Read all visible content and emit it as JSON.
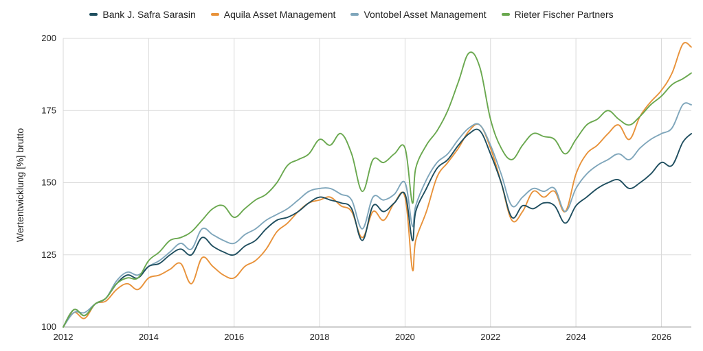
{
  "chart_data": {
    "type": "line",
    "title": "",
    "xlabel": "",
    "ylabel": "Wertentwicklung [%] brutto",
    "xlim": [
      2012,
      2026.7
    ],
    "ylim": [
      100,
      200
    ],
    "x_ticks": [
      2012,
      2014,
      2016,
      2018,
      2020,
      2022,
      2024,
      2026
    ],
    "y_ticks": [
      100,
      125,
      150,
      175,
      200
    ],
    "grid": true,
    "legend_position": "top-center",
    "series": [
      {
        "name": "Bank J. Safra Sarasin",
        "color": "#1f4e5f",
        "x": [
          2012,
          2012.25,
          2012.5,
          2012.75,
          2013,
          2013.25,
          2013.5,
          2013.75,
          2014,
          2014.25,
          2014.5,
          2014.75,
          2015,
          2015.25,
          2015.5,
          2015.75,
          2016,
          2016.25,
          2016.5,
          2016.75,
          2017,
          2017.25,
          2017.5,
          2017.75,
          2018,
          2018.25,
          2018.5,
          2018.75,
          2019,
          2019.25,
          2019.5,
          2019.75,
          2020,
          2020.17,
          2020.25,
          2020.5,
          2020.75,
          2021,
          2021.25,
          2021.5,
          2021.75,
          2022,
          2022.25,
          2022.5,
          2022.75,
          2023,
          2023.25,
          2023.5,
          2023.75,
          2024,
          2024.25,
          2024.5,
          2024.75,
          2025,
          2025.25,
          2025.5,
          2025.75,
          2026,
          2026.25,
          2026.5,
          2026.7
        ],
        "values": [
          100,
          106,
          104,
          108,
          110,
          115,
          118,
          117,
          121,
          122,
          125,
          127,
          125,
          131,
          128,
          126,
          125,
          128,
          130,
          134,
          137,
          138,
          140,
          143,
          145,
          144,
          143,
          141,
          130,
          142,
          140,
          143,
          146,
          130,
          140,
          148,
          155,
          158,
          163,
          167,
          168,
          160,
          150,
          138,
          142,
          141,
          143,
          142,
          136,
          142,
          145,
          148,
          150,
          151,
          148,
          150,
          153,
          157,
          156,
          164,
          167
        ]
      },
      {
        "name": "Aquila Asset Management",
        "color": "#e8923a",
        "x": [
          2012,
          2012.25,
          2012.5,
          2012.75,
          2013,
          2013.25,
          2013.5,
          2013.75,
          2014,
          2014.25,
          2014.5,
          2014.75,
          2015,
          2015.25,
          2015.5,
          2015.75,
          2016,
          2016.25,
          2016.5,
          2016.75,
          2017,
          2017.25,
          2017.5,
          2017.75,
          2018,
          2018.25,
          2018.5,
          2018.75,
          2019,
          2019.25,
          2019.5,
          2019.75,
          2020,
          2020.17,
          2020.25,
          2020.5,
          2020.75,
          2021,
          2021.25,
          2021.5,
          2021.75,
          2022,
          2022.25,
          2022.5,
          2022.75,
          2023,
          2023.25,
          2023.5,
          2023.75,
          2024,
          2024.25,
          2024.5,
          2024.75,
          2025,
          2025.25,
          2025.5,
          2025.75,
          2026,
          2026.25,
          2026.5,
          2026.7
        ],
        "values": [
          100,
          105,
          103,
          108,
          109,
          113,
          115,
          113,
          117,
          118,
          120,
          122,
          115,
          124,
          121,
          118,
          117,
          121,
          123,
          127,
          133,
          136,
          140,
          143,
          144,
          145,
          142,
          140,
          131,
          140,
          137,
          143,
          145,
          120,
          130,
          140,
          152,
          157,
          162,
          168,
          170,
          162,
          150,
          137,
          140,
          147,
          145,
          147,
          140,
          153,
          160,
          163,
          167,
          170,
          165,
          173,
          178,
          182,
          188,
          198,
          197
        ]
      },
      {
        "name": "Vontobel Asset Management",
        "color": "#7fa6bb",
        "x": [
          2012,
          2012.25,
          2012.5,
          2012.75,
          2013,
          2013.25,
          2013.5,
          2013.75,
          2014,
          2014.25,
          2014.5,
          2014.75,
          2015,
          2015.25,
          2015.5,
          2015.75,
          2016,
          2016.25,
          2016.5,
          2016.75,
          2017,
          2017.25,
          2017.5,
          2017.75,
          2018,
          2018.25,
          2018.5,
          2018.75,
          2019,
          2019.25,
          2019.5,
          2019.75,
          2020,
          2020.17,
          2020.25,
          2020.5,
          2020.75,
          2021,
          2021.25,
          2021.5,
          2021.75,
          2022,
          2022.25,
          2022.5,
          2022.75,
          2023,
          2023.25,
          2023.5,
          2023.75,
          2024,
          2024.25,
          2024.5,
          2024.75,
          2025,
          2025.25,
          2025.5,
          2025.75,
          2026,
          2026.25,
          2026.5,
          2026.7
        ],
        "values": [
          100,
          105,
          105,
          108,
          110,
          116,
          119,
          118,
          121,
          123,
          126,
          129,
          127,
          134,
          132,
          130,
          129,
          132,
          134,
          137,
          139,
          141,
          144,
          147,
          148,
          148,
          146,
          144,
          134,
          145,
          144,
          146,
          150,
          135,
          142,
          151,
          157,
          160,
          165,
          169,
          170,
          163,
          153,
          142,
          145,
          148,
          147,
          148,
          140,
          148,
          153,
          156,
          158,
          160,
          158,
          162,
          165,
          167,
          169,
          177,
          177
        ]
      },
      {
        "name": "Rieter Fischer Partners",
        "color": "#6aa84f",
        "x": [
          2012,
          2012.25,
          2012.5,
          2012.75,
          2013,
          2013.25,
          2013.5,
          2013.75,
          2014,
          2014.25,
          2014.5,
          2014.75,
          2015,
          2015.25,
          2015.5,
          2015.75,
          2016,
          2016.25,
          2016.5,
          2016.75,
          2017,
          2017.25,
          2017.5,
          2017.75,
          2018,
          2018.25,
          2018.5,
          2018.75,
          2019,
          2019.25,
          2019.5,
          2019.75,
          2020,
          2020.17,
          2020.25,
          2020.5,
          2020.75,
          2021,
          2021.25,
          2021.5,
          2021.75,
          2022,
          2022.25,
          2022.5,
          2022.75,
          2023,
          2023.25,
          2023.5,
          2023.75,
          2024,
          2024.25,
          2024.5,
          2024.75,
          2025,
          2025.25,
          2025.5,
          2025.75,
          2026,
          2026.25,
          2026.5,
          2026.7
        ],
        "values": [
          100,
          106,
          104,
          108,
          110,
          115,
          117,
          117,
          123,
          126,
          130,
          131,
          133,
          137,
          141,
          142,
          138,
          141,
          144,
          146,
          150,
          156,
          158,
          160,
          165,
          163,
          167,
          160,
          147,
          158,
          157,
          160,
          162,
          143,
          155,
          163,
          168,
          175,
          185,
          195,
          190,
          172,
          162,
          158,
          163,
          167,
          166,
          165,
          160,
          165,
          170,
          172,
          175,
          172,
          170,
          173,
          177,
          180,
          184,
          186,
          188
        ]
      }
    ]
  }
}
